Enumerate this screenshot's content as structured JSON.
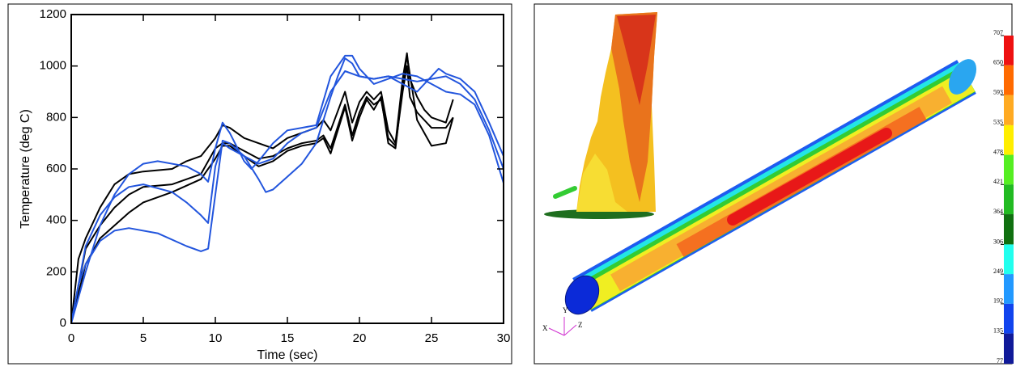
{
  "chart_data": {
    "type": "line",
    "xlabel": "Time (sec)",
    "ylabel": "Temperature (deg C)",
    "xlim": [
      0,
      30
    ],
    "xticks": [
      0,
      5,
      10,
      15,
      20,
      25,
      30
    ],
    "ylim": [
      0,
      1200
    ],
    "yticks": [
      0,
      200,
      400,
      600,
      800,
      1000,
      1200
    ],
    "series": [
      {
        "color": "#000000",
        "x": [
          0,
          0.5,
          1,
          2,
          3,
          4,
          5,
          7,
          8,
          9,
          10,
          10.5,
          11,
          12,
          13,
          14,
          15,
          16,
          17,
          17.5,
          18,
          19,
          19.5,
          20,
          20.5,
          21,
          21.5,
          22,
          22.5,
          23,
          23.3,
          23.5,
          24,
          24.5,
          25,
          26,
          26.5
        ],
        "values": [
          0,
          250,
          330,
          450,
          540,
          580,
          590,
          600,
          630,
          650,
          720,
          770,
          760,
          720,
          700,
          680,
          720,
          740,
          760,
          790,
          750,
          900,
          780,
          860,
          900,
          870,
          900,
          750,
          700,
          950,
          1050,
          950,
          880,
          830,
          800,
          780,
          870
        ]
      },
      {
        "color": "#000000",
        "x": [
          0,
          1,
          2,
          3,
          4,
          5,
          7,
          9,
          10,
          10.5,
          11,
          13,
          14,
          15,
          16,
          17,
          17.5,
          18,
          19,
          19.5,
          20,
          20.5,
          21,
          21.5,
          22,
          22.5,
          23,
          23.3,
          23.5,
          24,
          24.5,
          25,
          26,
          26.5
        ],
        "values": [
          0,
          290,
          380,
          450,
          500,
          530,
          540,
          580,
          680,
          700,
          700,
          640,
          650,
          680,
          700,
          710,
          730,
          680,
          850,
          730,
          820,
          880,
          850,
          870,
          720,
          690,
          900,
          1000,
          880,
          820,
          790,
          760,
          760,
          800
        ]
      },
      {
        "color": "#000000",
        "x": [
          0,
          1,
          2,
          3,
          4,
          5,
          7,
          9,
          10,
          10.5,
          11,
          13,
          14,
          15,
          16,
          17,
          17.5,
          18,
          19,
          19.5,
          20,
          20.5,
          21,
          21.5,
          22,
          22.5,
          23,
          23.3,
          24,
          25,
          26,
          26.5
        ],
        "values": [
          0,
          230,
          330,
          380,
          430,
          470,
          510,
          560,
          640,
          690,
          690,
          610,
          630,
          670,
          690,
          700,
          720,
          660,
          840,
          710,
          800,
          870,
          830,
          880,
          700,
          680,
          920,
          1040,
          790,
          690,
          700,
          800
        ]
      },
      {
        "color": "#2255dd",
        "x": [
          0,
          0.5,
          1,
          2,
          3,
          4,
          6,
          8,
          9,
          9.5,
          10,
          10.5,
          11,
          12,
          13,
          13.5,
          14,
          15,
          16,
          17,
          18,
          18.5,
          19,
          19.5,
          20,
          21,
          22,
          23,
          24,
          25,
          25.5,
          26,
          27,
          28,
          29,
          30
        ],
        "values": [
          0,
          150,
          230,
          320,
          360,
          370,
          350,
          300,
          280,
          290,
          500,
          710,
          700,
          650,
          560,
          510,
          520,
          570,
          620,
          700,
          880,
          960,
          1030,
          1010,
          960,
          950,
          960,
          930,
          900,
          960,
          990,
          970,
          950,
          900,
          780,
          650
        ]
      },
      {
        "color": "#2255dd",
        "x": [
          0,
          1,
          2,
          3,
          4,
          5,
          7,
          8,
          9,
          9.5,
          10,
          10.5,
          11,
          12,
          13,
          14,
          15,
          16,
          17,
          18,
          19,
          20,
          21,
          22,
          23,
          24,
          25,
          26,
          27,
          28,
          29,
          30
        ],
        "values": [
          0,
          300,
          420,
          490,
          530,
          540,
          510,
          470,
          420,
          390,
          610,
          700,
          680,
          650,
          620,
          640,
          700,
          740,
          760,
          900,
          980,
          960,
          950,
          960,
          950,
          940,
          950,
          960,
          930,
          870,
          750,
          600
        ]
      },
      {
        "color": "#2255dd",
        "x": [
          0,
          1,
          2,
          3,
          4,
          5,
          6,
          8,
          9,
          9.5,
          10,
          10.5,
          11,
          12,
          12.5,
          13,
          14,
          15,
          16,
          17,
          18,
          19,
          19.5,
          20,
          21,
          22,
          23,
          24,
          25,
          26,
          27,
          28,
          29,
          30
        ],
        "values": [
          0,
          200,
          380,
          500,
          580,
          620,
          630,
          610,
          580,
          550,
          680,
          780,
          740,
          630,
          600,
          630,
          700,
          750,
          760,
          770,
          960,
          1040,
          1040,
          990,
          930,
          950,
          970,
          960,
          930,
          900,
          890,
          850,
          730,
          545
        ]
      }
    ]
  },
  "render": {
    "colorbar": {
      "ticks": [
        707,
        650,
        593,
        535,
        478,
        421,
        364,
        306,
        249,
        192,
        135,
        77
      ],
      "colors": [
        "#ee1111",
        "#ff6a00",
        "#ffaa22",
        "#ffee00",
        "#55ee22",
        "#22bb22",
        "#107010",
        "#22ffee",
        "#2299ff",
        "#1144ee",
        "#101a99"
      ]
    },
    "axes": [
      "X",
      "Y",
      "Z"
    ]
  }
}
